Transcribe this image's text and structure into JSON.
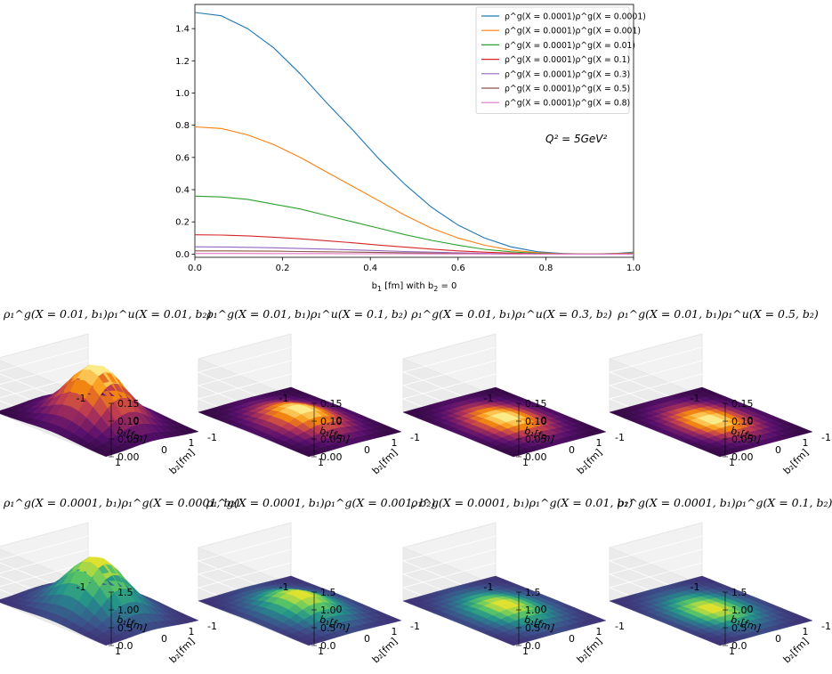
{
  "chart_data": [
    {
      "type": "line",
      "xlabel": "b_1 [fm] with b_2 = 0",
      "ylabel": "",
      "xlim": [
        0.0,
        1.0
      ],
      "ylim": [
        -0.02,
        1.55
      ],
      "xticks": [
        "0.0",
        "0.2",
        "0.4",
        "0.6",
        "0.8",
        "1.0"
      ],
      "yticks": [
        "0.0",
        "0.2",
        "0.4",
        "0.6",
        "0.8",
        "1.0",
        "1.2",
        "1.4"
      ],
      "annotation": "Q² = 5GeV²",
      "legend_position": "upper right",
      "x": [
        0.0,
        0.06,
        0.12,
        0.18,
        0.24,
        0.3,
        0.36,
        0.42,
        0.48,
        0.54,
        0.6,
        0.66,
        0.72,
        0.78,
        0.84,
        0.9,
        0.96,
        1.0
      ],
      "series": [
        {
          "name": "ρ^g(X = 0.0001)ρ^g(X = 0.0001)",
          "color": "#1f77b4",
          "values": [
            1.5,
            1.48,
            1.4,
            1.28,
            1.12,
            0.94,
            0.77,
            0.59,
            0.43,
            0.29,
            0.18,
            0.1,
            0.045,
            0.015,
            0.003,
            0.0,
            0.004,
            0.012
          ]
        },
        {
          "name": "ρ^g(X = 0.0001)ρ^g(X = 0.001)",
          "color": "#ff7f0e",
          "values": [
            0.79,
            0.78,
            0.74,
            0.68,
            0.6,
            0.51,
            0.42,
            0.33,
            0.24,
            0.16,
            0.1,
            0.055,
            0.025,
            0.009,
            0.002,
            0.0,
            0.003,
            0.007
          ]
        },
        {
          "name": "ρ^g(X = 0.0001)ρ^g(X = 0.01)",
          "color": "#2ca02c",
          "values": [
            0.36,
            0.355,
            0.34,
            0.31,
            0.28,
            0.24,
            0.2,
            0.16,
            0.12,
            0.085,
            0.055,
            0.03,
            0.014,
            0.005,
            0.001,
            0.0,
            0.002,
            0.004
          ]
        },
        {
          "name": "ρ^g(X = 0.0001)ρ^g(X = 0.1)",
          "color": "#d62728",
          "values": [
            0.12,
            0.118,
            0.113,
            0.105,
            0.095,
            0.083,
            0.07,
            0.056,
            0.043,
            0.031,
            0.02,
            0.012,
            0.006,
            0.002,
            0.0,
            0.0,
            0.001,
            0.002
          ]
        },
        {
          "name": "ρ^g(X = 0.0001)ρ^g(X = 0.3)",
          "color": "#9467bd",
          "values": [
            0.045,
            0.044,
            0.042,
            0.039,
            0.035,
            0.031,
            0.026,
            0.021,
            0.016,
            0.012,
            0.008,
            0.005,
            0.002,
            0.001,
            0.0,
            0.0,
            0.0,
            0.001
          ]
        },
        {
          "name": "ρ^g(X = 0.0001)ρ^g(X = 0.5)",
          "color": "#8c564b",
          "values": [
            0.02,
            0.02,
            0.019,
            0.018,
            0.016,
            0.014,
            0.012,
            0.01,
            0.008,
            0.006,
            0.004,
            0.002,
            0.001,
            0.0,
            0.0,
            0.0,
            0.0,
            0.0
          ]
        },
        {
          "name": "ρ^g(X = 0.0001)ρ^g(X = 0.8)",
          "color": "#e377c2",
          "values": [
            0.004,
            0.004,
            0.004,
            0.003,
            0.003,
            0.003,
            0.002,
            0.002,
            0.002,
            0.001,
            0.001,
            0.001,
            0.0,
            0.0,
            0.0,
            0.0,
            0.0,
            0.0
          ]
        }
      ]
    },
    {
      "type": "surface3d",
      "panels": [
        {
          "title": "ρ₁^g(X = 0.01, b₁)ρ₁^u(X = 0.01, b₂)",
          "peak": 0.16,
          "zlim": [
            0,
            0.15
          ],
          "zticks": [
            "0.15",
            "0.10",
            "0.05",
            "0.00"
          ],
          "colormap": "inferno"
        },
        {
          "title": "ρ₁^g(X = 0.01, b₁)ρ₁^u(X = 0.1, b₂)",
          "peak": 0.04,
          "zlim": [
            0,
            0.15
          ],
          "zticks": [
            "0.15",
            "0.10",
            "0.05",
            "0.00"
          ],
          "colormap": "inferno"
        },
        {
          "title": "ρ₁^g(X = 0.01, b₁)ρ₁^u(X = 0.3, b₂)",
          "peak": 0.015,
          "zlim": [
            0,
            0.15
          ],
          "zticks": [
            "0.15",
            "0.10",
            "0.05",
            "0.00"
          ],
          "colormap": "inferno"
        },
        {
          "title": "ρ₁^g(X = 0.01, b₁)ρ₁^u(X = 0.5, b₂)",
          "peak": 0.008,
          "zlim": [
            0,
            0.15
          ],
          "zticks": [
            "0.15",
            "0.10",
            "0.05",
            "0.00"
          ],
          "colormap": "inferno"
        },
        {
          "title": "ρ₁^g(X = 0.0001, b₁)ρ₁^g(X = 0.0001, b₂)",
          "peak": 1.5,
          "zlim": [
            0,
            1.5
          ],
          "zticks": [
            "1.5",
            "1.0",
            "0.5",
            "0.0"
          ],
          "colormap": "viridis"
        },
        {
          "title": "ρ₁^g(X = 0.0001, b₁)ρ₁^g(X = 0.001, b₂)",
          "peak": 0.5,
          "zlim": [
            0,
            1.5
          ],
          "zticks": [
            "1.5",
            "1.0",
            "0.5",
            "0.0"
          ],
          "colormap": "viridis"
        },
        {
          "title": "ρ₁^g(X = 0.0001, b₁)ρ₁^g(X = 0.01, b₂)",
          "peak": 0.2,
          "zlim": [
            0,
            1.5
          ],
          "zticks": [
            "1.5",
            "1.0",
            "0.5",
            "0.0"
          ],
          "colormap": "viridis"
        },
        {
          "title": "ρ₁^g(X = 0.0001, b₁)ρ₁^g(X = 0.1, b₂)",
          "peak": 0.08,
          "zlim": [
            0,
            1.5
          ],
          "zticks": [
            "1.5",
            "1.0",
            "0.5",
            "0.0"
          ],
          "colormap": "viridis"
        }
      ],
      "b_ticks": [
        "-1",
        "0",
        "1"
      ],
      "b1_label": "b₁[fm]",
      "b2_label": "b₂[fm]"
    }
  ]
}
